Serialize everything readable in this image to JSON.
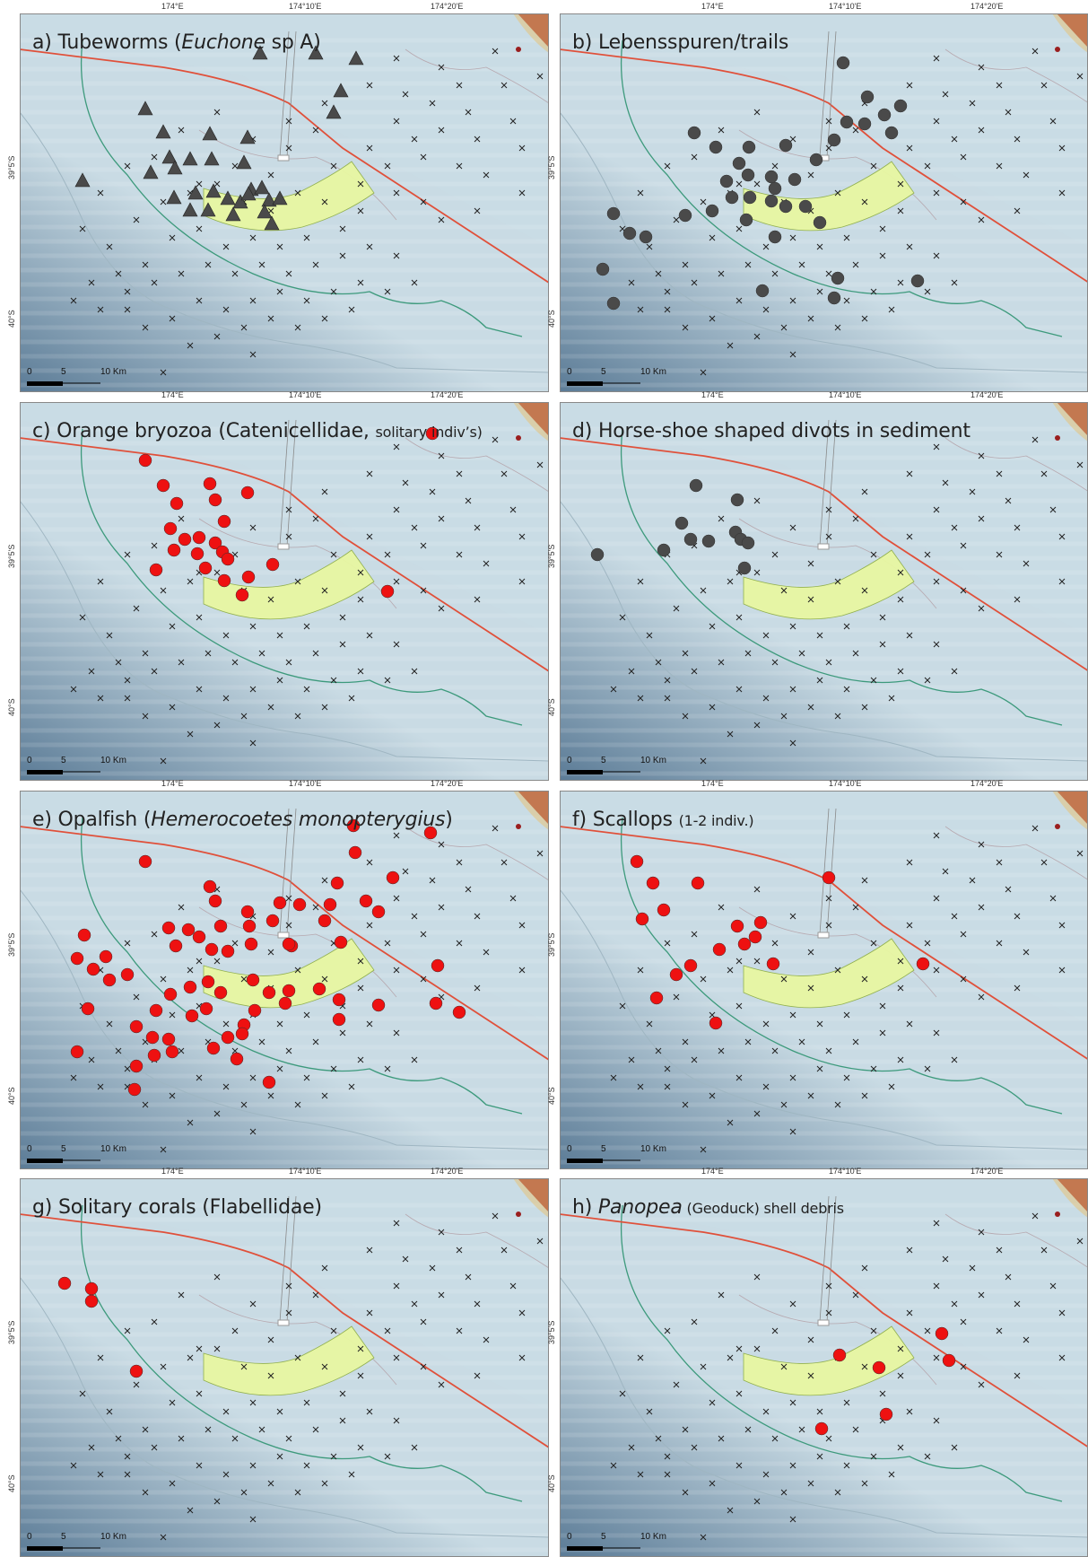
{
  "colors": {
    "water": "#c9dbe4",
    "deep": "#5b7b96",
    "zone": "#e8f7a2",
    "line": "#e0503a",
    "contour": "#3d9a7c",
    "red": "#ee1111",
    "gray": "#4a4a4a",
    "land": "#9a1e1e"
  },
  "lon_ticks": [
    "174°E",
    "174°10'E",
    "174°20'E"
  ],
  "lat_ticks": [
    "39°5'S",
    "40°S"
  ],
  "scale": {
    "zero": "0",
    "five": "5",
    "ten": "10 Km"
  },
  "panels": [
    {
      "id": "a",
      "title_pre": "a) Tubeworms (",
      "title_italic": "Euchone",
      "title_post": " sp A)",
      "marker": "triangle",
      "color": "gray"
    },
    {
      "id": "b",
      "title_pre": "b) Lebensspuren/trails",
      "title_italic": "",
      "title_post": "",
      "marker": "circle",
      "color": "gray"
    },
    {
      "id": "c",
      "title_pre": "c) Orange bryozoa (Catenicellidae, ",
      "title_italic": "",
      "title_post": "solitary indiv’s)",
      "marker": "circle",
      "color": "red"
    },
    {
      "id": "d",
      "title_pre": "d) Horse-shoe shaped divots in sediment",
      "title_italic": "",
      "title_post": "",
      "marker": "circle",
      "color": "gray"
    },
    {
      "id": "e",
      "title_pre": "e) Opalfish (",
      "title_italic": "Hemerocoetes monopterygius",
      "title_post": ")",
      "marker": "circle",
      "color": "red"
    },
    {
      "id": "f",
      "title_pre": "f) Scallops ",
      "title_italic": "",
      "title_post": "(1-2 indiv.)",
      "marker": "circle",
      "color": "red"
    },
    {
      "id": "g",
      "title_pre": "g) Solitary corals (Flabellidae)",
      "title_italic": "",
      "title_post": "",
      "marker": "circle",
      "color": "red"
    },
    {
      "id": "h",
      "title_pre": "h) ",
      "title_italic": "Panopea",
      "title_post": " (Geoduck) shell debris",
      "marker": "circle",
      "color": "red"
    }
  ]
}
